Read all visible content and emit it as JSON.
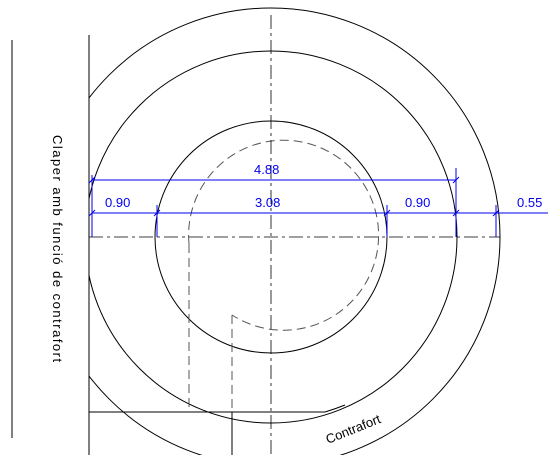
{
  "side_label": "Claper amb funció de contrafort",
  "contrafort_label": "Contrafort",
  "dimensions": {
    "overall_width": "4.88",
    "inner_diameter": "3.08",
    "left_wall": "0.90",
    "right_wall": "0.90",
    "outer_ring": "0.55"
  },
  "colors": {
    "line": "#000000",
    "dimension": "#0000ee",
    "hidden": "#555555"
  }
}
